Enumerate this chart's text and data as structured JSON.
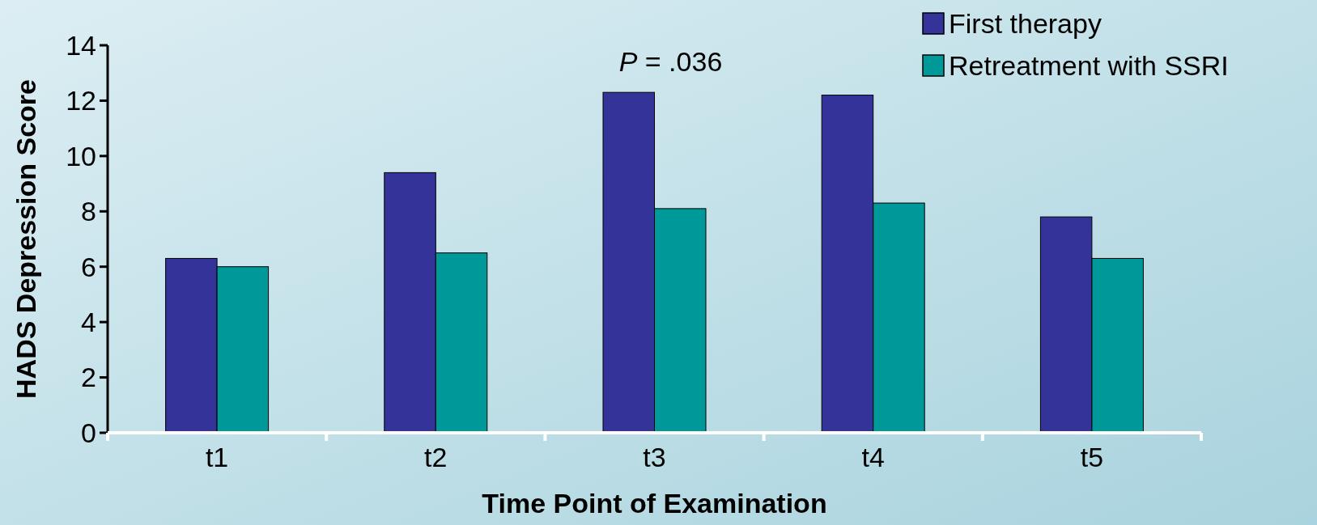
{
  "chart_data": {
    "type": "bar",
    "xlabel": "Time Point of Examination",
    "ylabel": "HADS Depression Score",
    "categories": [
      "t1",
      "t2",
      "t3",
      "t4",
      "t5"
    ],
    "series": [
      {
        "name": "First therapy",
        "color": "#333399",
        "values": [
          6.3,
          9.4,
          12.3,
          12.2,
          7.8
        ]
      },
      {
        "name": "Retreatment with SSRI",
        "color": "#009999",
        "values": [
          6.0,
          6.5,
          8.1,
          8.3,
          6.3
        ]
      }
    ],
    "ylim": [
      0,
      14
    ],
    "yticks": [
      0,
      2,
      4,
      6,
      8,
      10,
      12,
      14
    ],
    "grid": false,
    "legend": "top right",
    "annotations": [
      "P = .036"
    ]
  }
}
